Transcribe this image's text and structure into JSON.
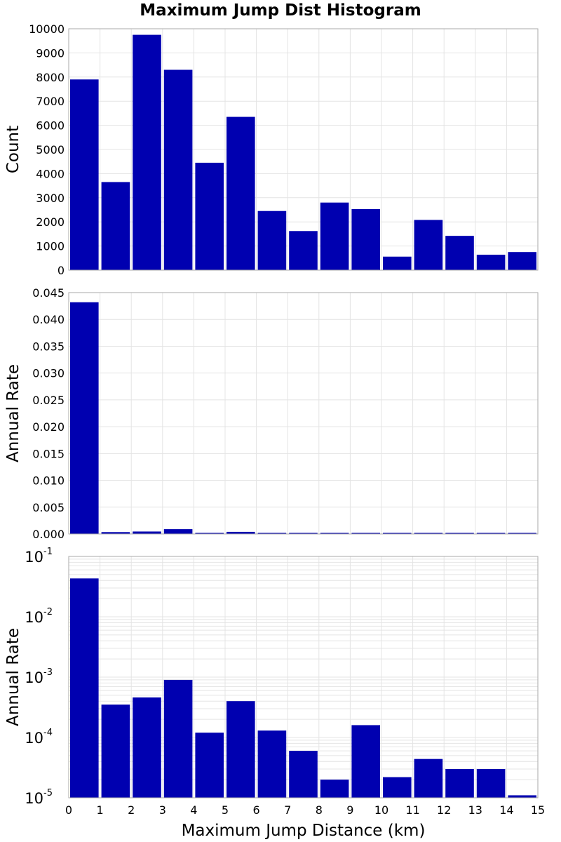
{
  "title": "Maximum Jump Dist Histogram",
  "colors": {
    "bar": "#0000b0",
    "grid": "#e4e4e4",
    "frame": "#aaaaaa"
  },
  "chart_data": [
    {
      "type": "bar",
      "ylabel": "Count",
      "ylim": [
        0,
        10000
      ],
      "yticks": [
        "0",
        "1000",
        "2000",
        "3000",
        "4000",
        "5000",
        "6000",
        "7000",
        "8000",
        "9000",
        "10000"
      ],
      "bin_edges": [
        0,
        1,
        2,
        3,
        4,
        5,
        6,
        7,
        8,
        9,
        10,
        11,
        12,
        13,
        14,
        15
      ],
      "values": [
        7900,
        3650,
        9750,
        8300,
        4450,
        6350,
        2450,
        1620,
        2800,
        2530,
        560,
        2080,
        1420,
        640,
        750
      ],
      "grid": true
    },
    {
      "type": "bar",
      "ylabel": "Annual Rate",
      "ylim": [
        0,
        0.045
      ],
      "yticks": [
        "0.000",
        "0.005",
        "0.010",
        "0.015",
        "0.020",
        "0.025",
        "0.030",
        "0.035",
        "0.040",
        "0.045"
      ],
      "bin_edges": [
        0,
        1,
        2,
        3,
        4,
        5,
        6,
        7,
        8,
        9,
        10,
        11,
        12,
        13,
        14,
        15
      ],
      "values": [
        0.0432,
        0.00035,
        0.00046,
        0.0009,
        0.00012,
        0.0004,
        0.00013,
        6e-05,
        2e-05,
        0.00016,
        2.2e-05,
        4.4e-05,
        3e-05,
        3e-05,
        1.1e-05
      ],
      "grid": true
    },
    {
      "type": "bar",
      "scale": "log",
      "ylabel": "Annual Rate",
      "ylim": [
        1e-05,
        0.1
      ],
      "yticks": [
        {
          "base": "10",
          "exp": "-5"
        },
        {
          "base": "10",
          "exp": "-4"
        },
        {
          "base": "10",
          "exp": "-3"
        },
        {
          "base": "10",
          "exp": "-2"
        },
        {
          "base": "10",
          "exp": "-1"
        }
      ],
      "xlabel": "Maximum Jump Distance (km)",
      "xticks": [
        "0",
        "1",
        "2",
        "3",
        "4",
        "5",
        "6",
        "7",
        "8",
        "9",
        "10",
        "11",
        "12",
        "13",
        "14",
        "15"
      ],
      "bin_edges": [
        0,
        1,
        2,
        3,
        4,
        5,
        6,
        7,
        8,
        9,
        10,
        11,
        12,
        13,
        14,
        15
      ],
      "values": [
        0.0432,
        0.00035,
        0.00046,
        0.0009,
        0.00012,
        0.0004,
        0.00013,
        6e-05,
        2e-05,
        0.00016,
        2.2e-05,
        4.4e-05,
        3e-05,
        3e-05,
        1.1e-05
      ],
      "grid": true
    }
  ]
}
